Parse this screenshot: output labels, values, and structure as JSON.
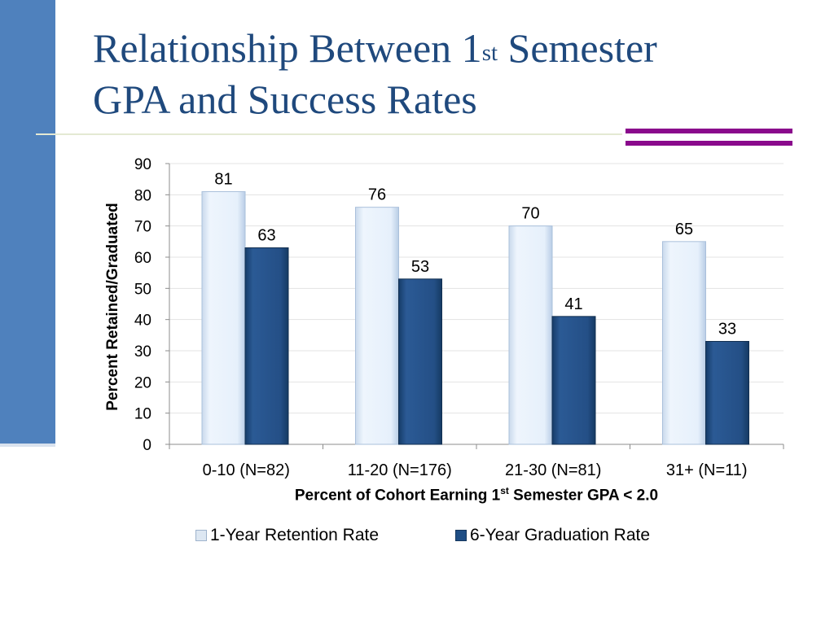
{
  "slide": {
    "title_line1_a": "Relationship Between 1",
    "title_line1_sup": "st",
    "title_line1_b": " Semester",
    "title_line2": "GPA and Success Rates"
  },
  "chart_data": {
    "type": "bar",
    "categories": [
      "0-10 (N=82)",
      "11-20 (N=176)",
      "21-30 (N=81)",
      "31+ (N=11)"
    ],
    "series": [
      {
        "name": "1-Year Retention Rate",
        "values": [
          81,
          76,
          70,
          65
        ],
        "color": "#e6f0fb"
      },
      {
        "name": "6-Year Graduation Rate",
        "values": [
          63,
          53,
          41,
          33
        ],
        "color": "#244f86"
      }
    ],
    "ylabel": "Percent Retained/Graduated",
    "xlabel_a": "Percent of Cohort Earning 1",
    "xlabel_sup": "st",
    "xlabel_b": " Semester GPA < 2.0",
    "ylim": [
      0,
      90
    ],
    "yticks": [
      0,
      10,
      20,
      30,
      40,
      50,
      60,
      70,
      80,
      90
    ],
    "grid": true,
    "data_labels": true,
    "legend_placement": "bottom"
  },
  "theme": {
    "accent": "#4f81bd",
    "title_color": "#1f497d",
    "rule_color": "#8a0a8c"
  }
}
